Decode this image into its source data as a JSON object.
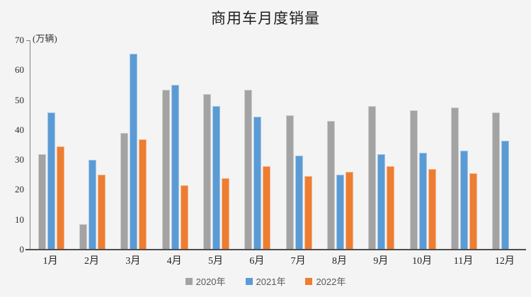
{
  "title": "商用车月度销量",
  "unit_label": "(万辆)",
  "colors": {
    "series_2020": "#A3A3A3",
    "series_2021": "#5B9BD5",
    "series_2022": "#ED7D31",
    "background": "#F4F4F4",
    "axis_line": "#7F7F7F",
    "baseline": "#4D4D4D",
    "text": "#222222"
  },
  "chart_data": {
    "type": "bar",
    "title": "商用车月度销量",
    "ylabel": "(万辆)",
    "xlabel": "",
    "ylim": [
      0,
      70
    ],
    "yticks": [
      0,
      10,
      20,
      30,
      40,
      50,
      60,
      70
    ],
    "grid": false,
    "legend_position": "bottom",
    "categories": [
      "1月",
      "2月",
      "3月",
      "4月",
      "5月",
      "6月",
      "7月",
      "8月",
      "9月",
      "10月",
      "11月",
      "12月"
    ],
    "series": [
      {
        "name": "2020年",
        "color": "#A3A3A3",
        "values": [
          32,
          8.5,
          39,
          53.5,
          52,
          53.5,
          45,
          43,
          48,
          46.5,
          47.5,
          46
        ]
      },
      {
        "name": "2021年",
        "color": "#5B9BD5",
        "values": [
          46,
          30,
          65.5,
          55,
          48,
          44.5,
          31.5,
          25,
          32,
          32.5,
          33,
          36.5
        ]
      },
      {
        "name": "2022年",
        "color": "#ED7D31",
        "values": [
          34.5,
          25,
          37,
          21.5,
          24,
          28,
          24.5,
          26,
          28,
          27,
          25.5,
          null
        ]
      }
    ]
  }
}
